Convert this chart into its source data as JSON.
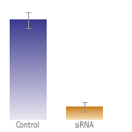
{
  "categories": [
    "Control",
    "siRNA"
  ],
  "values": [
    100,
    13
  ],
  "errors": [
    8,
    5
  ],
  "bar_colors_top": [
    "#3d3b8e",
    "#c97c20"
  ],
  "bar_colors_bottom": [
    "#e8e6f0",
    "#f5ddb0"
  ],
  "background_color": "#ffffff",
  "ylim": [
    0,
    118
  ],
  "bar_width": 0.65,
  "xlabel_fontsize": 5.5,
  "positions": [
    0,
    1
  ],
  "xlim": [
    -0.45,
    1.8
  ]
}
